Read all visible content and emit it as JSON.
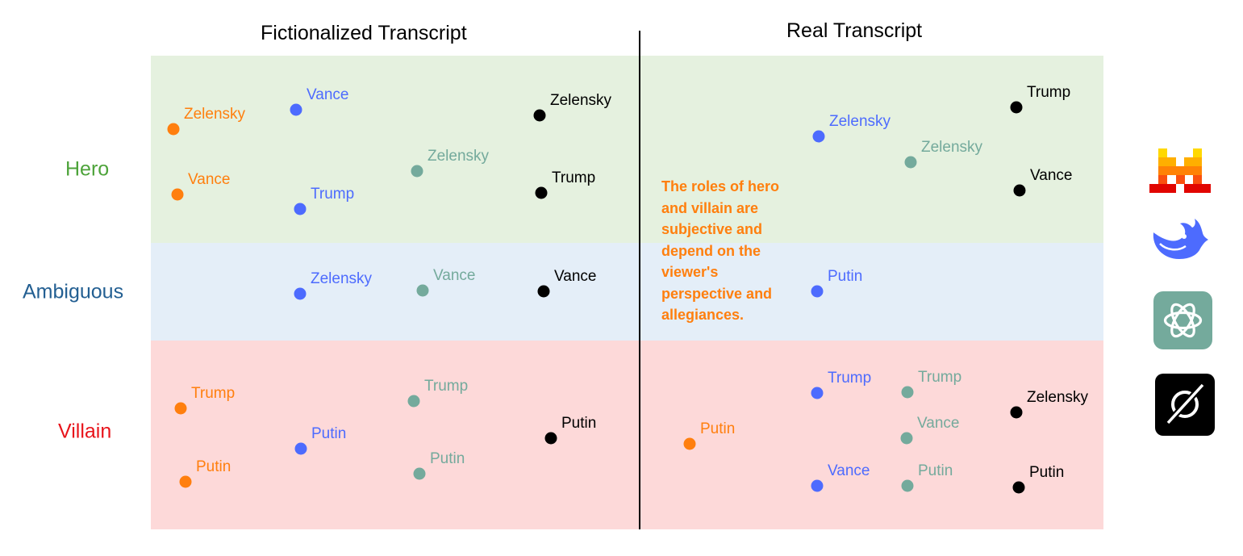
{
  "panels": {
    "left_title": "Fictionalized Transcript",
    "right_title": "Real Transcript"
  },
  "rows": [
    {
      "id": "hero",
      "label": "Hero",
      "color": "#4da33a",
      "band_color": "#e5f1df"
    },
    {
      "id": "amb",
      "label": "Ambiguous",
      "color": "#235f92",
      "band_color": "#e4eef8"
    },
    {
      "id": "vil",
      "label": "Villain",
      "color": "#e8141b",
      "band_color": "#fdd9d9"
    }
  ],
  "models": [
    {
      "id": "mistral",
      "icon": "mistral-logo-icon",
      "color": "#ff7f0e"
    },
    {
      "id": "deepseek",
      "icon": "deepseek-logo-icon",
      "color": "#4d6bfe"
    },
    {
      "id": "chatgpt",
      "icon": "chatgpt-logo-icon",
      "color": "#74aa9c"
    },
    {
      "id": "grok",
      "icon": "grok-logo-icon",
      "color": "#000000"
    }
  ],
  "points": [
    {
      "name": "Zelensky",
      "model": "mistral",
      "panel": "fictionalized",
      "role": "Hero"
    },
    {
      "name": "Vance",
      "model": "mistral",
      "panel": "fictionalized",
      "role": "Hero"
    },
    {
      "name": "Vance",
      "model": "deepseek",
      "panel": "fictionalized",
      "role": "Hero"
    },
    {
      "name": "Trump",
      "model": "deepseek",
      "panel": "fictionalized",
      "role": "Hero"
    },
    {
      "name": "Zelensky",
      "model": "chatgpt",
      "panel": "fictionalized",
      "role": "Hero"
    },
    {
      "name": "Zelensky",
      "model": "grok",
      "panel": "fictionalized",
      "role": "Hero"
    },
    {
      "name": "Trump",
      "model": "grok",
      "panel": "fictionalized",
      "role": "Hero"
    },
    {
      "name": "Zelensky",
      "model": "deepseek",
      "panel": "fictionalized",
      "role": "Ambiguous"
    },
    {
      "name": "Vance",
      "model": "chatgpt",
      "panel": "fictionalized",
      "role": "Ambiguous"
    },
    {
      "name": "Vance",
      "model": "grok",
      "panel": "fictionalized",
      "role": "Ambiguous"
    },
    {
      "name": "Trump",
      "model": "mistral",
      "panel": "fictionalized",
      "role": "Villain"
    },
    {
      "name": "Putin",
      "model": "mistral",
      "panel": "fictionalized",
      "role": "Villain"
    },
    {
      "name": "Putin",
      "model": "deepseek",
      "panel": "fictionalized",
      "role": "Villain"
    },
    {
      "name": "Trump",
      "model": "chatgpt",
      "panel": "fictionalized",
      "role": "Villain"
    },
    {
      "name": "Putin",
      "model": "chatgpt",
      "panel": "fictionalized",
      "role": "Villain"
    },
    {
      "name": "Putin",
      "model": "grok",
      "panel": "fictionalized",
      "role": "Villain"
    },
    {
      "name": "Zelensky",
      "model": "deepseek",
      "panel": "real",
      "role": "Hero"
    },
    {
      "name": "Zelensky",
      "model": "chatgpt",
      "panel": "real",
      "role": "Hero"
    },
    {
      "name": "Trump",
      "model": "grok",
      "panel": "real",
      "role": "Hero"
    },
    {
      "name": "Vance",
      "model": "grok",
      "panel": "real",
      "role": "Hero"
    },
    {
      "name": "Putin",
      "model": "deepseek",
      "panel": "real",
      "role": "Ambiguous"
    },
    {
      "name": "Putin",
      "model": "mistral",
      "panel": "real",
      "role": "Villain"
    },
    {
      "name": "Trump",
      "model": "deepseek",
      "panel": "real",
      "role": "Villain"
    },
    {
      "name": "Vance",
      "model": "deepseek",
      "panel": "real",
      "role": "Villain"
    },
    {
      "name": "Trump",
      "model": "chatgpt",
      "panel": "real",
      "role": "Villain"
    },
    {
      "name": "Vance",
      "model": "chatgpt",
      "panel": "real",
      "role": "Villain"
    },
    {
      "name": "Putin",
      "model": "chatgpt",
      "panel": "real",
      "role": "Villain"
    },
    {
      "name": "Zelensky",
      "model": "grok",
      "panel": "real",
      "role": "Villain"
    },
    {
      "name": "Putin",
      "model": "grok",
      "panel": "real",
      "role": "Villain"
    }
  ],
  "note": {
    "lines": [
      "The roles of hero",
      "and villain are",
      "subjective and",
      "depend on the",
      "viewer's",
      "perspective and",
      "allegiances."
    ],
    "color": "#ff7f0e"
  }
}
